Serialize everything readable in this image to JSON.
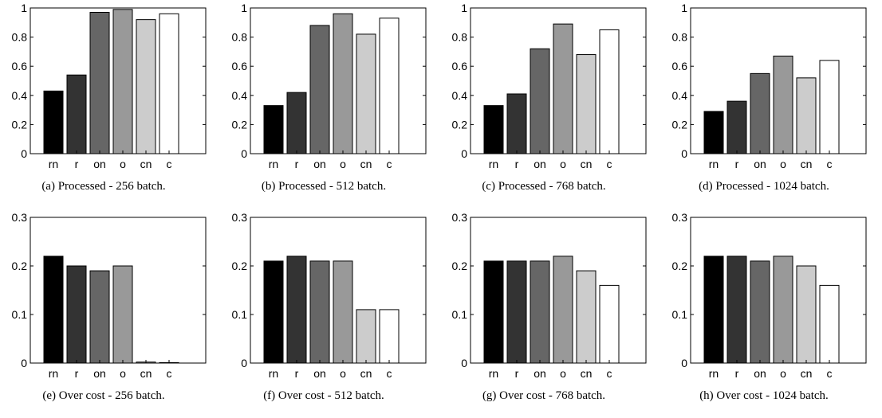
{
  "chart_data": [
    {
      "type": "bar",
      "caption": "(a) Processed - 256 batch.",
      "categories": [
        "rn",
        "r",
        "on",
        "o",
        "cn",
        "c"
      ],
      "values": [
        0.43,
        0.54,
        0.97,
        0.99,
        0.92,
        0.96
      ],
      "ylim": [
        0,
        1
      ],
      "yticks": [
        "0",
        "0.2",
        "0.4",
        "0.6",
        "0.8",
        "1"
      ],
      "colors": [
        "#000000",
        "#333333",
        "#666666",
        "#999999",
        "#cccccc",
        "#ffffff"
      ]
    },
    {
      "type": "bar",
      "caption": "(b) Processed - 512 batch.",
      "categories": [
        "rn",
        "r",
        "on",
        "o",
        "cn",
        "c"
      ],
      "values": [
        0.33,
        0.42,
        0.88,
        0.96,
        0.82,
        0.93
      ],
      "ylim": [
        0,
        1
      ],
      "yticks": [
        "0",
        "0.2",
        "0.4",
        "0.6",
        "0.8",
        "1"
      ],
      "colors": [
        "#000000",
        "#333333",
        "#666666",
        "#999999",
        "#cccccc",
        "#ffffff"
      ]
    },
    {
      "type": "bar",
      "caption": "(c) Processed - 768 batch.",
      "categories": [
        "rn",
        "r",
        "on",
        "o",
        "cn",
        "c"
      ],
      "values": [
        0.33,
        0.41,
        0.72,
        0.89,
        0.68,
        0.85
      ],
      "ylim": [
        0,
        1
      ],
      "yticks": [
        "0",
        "0.2",
        "0.4",
        "0.6",
        "0.8",
        "1"
      ],
      "colors": [
        "#000000",
        "#333333",
        "#666666",
        "#999999",
        "#cccccc",
        "#ffffff"
      ]
    },
    {
      "type": "bar",
      "caption": "(d) Processed - 1024 batch.",
      "categories": [
        "rn",
        "r",
        "on",
        "o",
        "cn",
        "c"
      ],
      "values": [
        0.29,
        0.36,
        0.55,
        0.67,
        0.52,
        0.64
      ],
      "ylim": [
        0,
        1
      ],
      "yticks": [
        "0",
        "0.2",
        "0.4",
        "0.6",
        "0.8",
        "1"
      ],
      "colors": [
        "#000000",
        "#333333",
        "#666666",
        "#999999",
        "#cccccc",
        "#ffffff"
      ]
    },
    {
      "type": "bar",
      "caption": "(e) Over cost - 256 batch.",
      "categories": [
        "rn",
        "r",
        "on",
        "o",
        "cn",
        "c"
      ],
      "values": [
        0.22,
        0.2,
        0.19,
        0.2,
        0.002,
        0.001
      ],
      "ylim": [
        0,
        0.3
      ],
      "yticks": [
        "0",
        "0.1",
        "0.2",
        "0.3"
      ],
      "colors": [
        "#000000",
        "#333333",
        "#666666",
        "#999999",
        "#cccccc",
        "#ffffff"
      ]
    },
    {
      "type": "bar",
      "caption": "(f) Over cost - 512 batch.",
      "categories": [
        "rn",
        "r",
        "on",
        "o",
        "cn",
        "c"
      ],
      "values": [
        0.21,
        0.22,
        0.21,
        0.21,
        0.11,
        0.11
      ],
      "ylim": [
        0,
        0.3
      ],
      "yticks": [
        "0",
        "0.1",
        "0.2",
        "0.3"
      ],
      "colors": [
        "#000000",
        "#333333",
        "#666666",
        "#999999",
        "#cccccc",
        "#ffffff"
      ]
    },
    {
      "type": "bar",
      "caption": "(g) Over cost - 768 batch.",
      "categories": [
        "rn",
        "r",
        "on",
        "o",
        "cn",
        "c"
      ],
      "values": [
        0.21,
        0.21,
        0.21,
        0.22,
        0.19,
        0.16
      ],
      "ylim": [
        0,
        0.3
      ],
      "yticks": [
        "0",
        "0.1",
        "0.2",
        "0.3"
      ],
      "colors": [
        "#000000",
        "#333333",
        "#666666",
        "#999999",
        "#cccccc",
        "#ffffff"
      ]
    },
    {
      "type": "bar",
      "caption": "(h) Over cost - 1024 batch.",
      "categories": [
        "rn",
        "r",
        "on",
        "o",
        "cn",
        "c"
      ],
      "values": [
        0.22,
        0.22,
        0.21,
        0.22,
        0.2,
        0.16
      ],
      "ylim": [
        0,
        0.3
      ],
      "yticks": [
        "0",
        "0.1",
        "0.2",
        "0.3"
      ],
      "colors": [
        "#000000",
        "#333333",
        "#666666",
        "#999999",
        "#cccccc",
        "#ffffff"
      ]
    }
  ]
}
